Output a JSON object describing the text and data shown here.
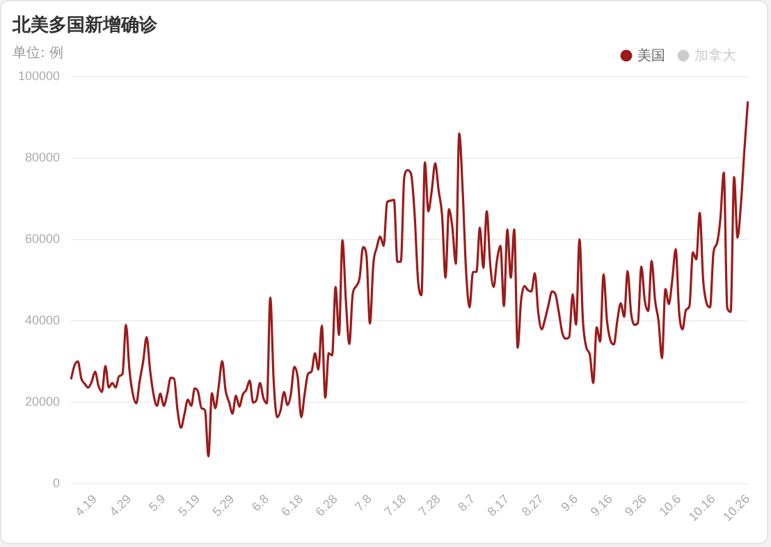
{
  "chart_data": {
    "type": "line",
    "title": "北美多国新增确诊",
    "subtitle": "单位: 例",
    "categories": [
      null,
      null,
      null,
      null,
      null,
      null,
      null,
      "4.19",
      null,
      null,
      null,
      null,
      null,
      null,
      null,
      null,
      null,
      "4.29",
      null,
      null,
      null,
      null,
      null,
      null,
      null,
      null,
      null,
      "5.9",
      null,
      null,
      null,
      null,
      null,
      null,
      null,
      null,
      null,
      "5.19",
      null,
      null,
      null,
      null,
      null,
      null,
      null,
      null,
      null,
      "5.29",
      null,
      null,
      null,
      null,
      null,
      null,
      null,
      null,
      null,
      "6.8",
      null,
      null,
      null,
      null,
      null,
      null,
      null,
      null,
      null,
      "6.18",
      null,
      null,
      null,
      null,
      null,
      null,
      null,
      null,
      null,
      "6.28",
      null,
      null,
      null,
      null,
      null,
      null,
      null,
      null,
      null,
      "7.8",
      null,
      null,
      null,
      null,
      null,
      null,
      null,
      null,
      null,
      "7.18",
      null,
      null,
      null,
      null,
      null,
      null,
      null,
      null,
      null,
      "7.28",
      null,
      null,
      null,
      null,
      null,
      null,
      null,
      null,
      null,
      "8.7",
      null,
      null,
      null,
      null,
      null,
      null,
      null,
      null,
      null,
      "8.17",
      null,
      null,
      null,
      null,
      null,
      null,
      null,
      null,
      null,
      "8.27",
      null,
      null,
      null,
      null,
      null,
      null,
      null,
      null,
      null,
      "9.6",
      null,
      null,
      null,
      null,
      null,
      null,
      null,
      null,
      null,
      "9.16",
      null,
      null,
      null,
      null,
      null,
      null,
      null,
      null,
      null,
      "9.26",
      null,
      null,
      null,
      null,
      null,
      null,
      null,
      null,
      null,
      "10.6",
      null,
      null,
      null,
      null,
      null,
      null,
      null,
      null,
      null,
      "10.16",
      null,
      null,
      null,
      null,
      null,
      null,
      null,
      null,
      null,
      "10.26"
    ],
    "series": [
      {
        "name": "美国",
        "color": "#9b1b1b",
        "values": [
          25600,
          29000,
          30000,
          25800,
          24500,
          23600,
          25000,
          27500,
          24000,
          22500,
          28900,
          23600,
          24700,
          23600,
          26400,
          27000,
          39000,
          28000,
          22000,
          19700,
          25300,
          30000,
          36000,
          28000,
          22000,
          19100,
          22100,
          19100,
          22000,
          26000,
          25800,
          18000,
          13700,
          17000,
          20600,
          19100,
          23400,
          22500,
          18500,
          18000,
          6700,
          22200,
          18500,
          24000,
          30100,
          22800,
          20000,
          17200,
          21600,
          18900,
          21900,
          23000,
          25300,
          19900,
          20600,
          24700,
          21000,
          19700,
          45700,
          25000,
          16300,
          18000,
          22500,
          19300,
          22000,
          28700,
          26000,
          16300,
          22000,
          27000,
          27500,
          32000,
          28000,
          38800,
          21100,
          32000,
          31500,
          48300,
          36500,
          59800,
          45000,
          34300,
          46600,
          48500,
          50600,
          58100,
          56000,
          39300,
          54000,
          58000,
          60700,
          58400,
          69100,
          69500,
          69700,
          54500,
          54500,
          75300,
          77000,
          76000,
          66300,
          50000,
          46300,
          78900,
          66900,
          72000,
          78700,
          72000,
          66000,
          50600,
          67400,
          62900,
          54000,
          86000,
          71900,
          52000,
          43300,
          52000,
          52000,
          62900,
          53000,
          66900,
          54000,
          48300,
          55000,
          58400,
          43600,
          62400,
          50600,
          62400,
          33400,
          45000,
          48500,
          47500,
          47200,
          51700,
          42000,
          37900,
          40500,
          44000,
          47200,
          46500,
          42000,
          37000,
          35600,
          36000,
          46500,
          39000,
          60000,
          40000,
          33400,
          31700,
          24700,
          38400,
          34900,
          51400,
          40000,
          35200,
          34200,
          40000,
          44300,
          41000,
          52200,
          42000,
          39000,
          39500,
          53300,
          45000,
          42400,
          54700,
          45000,
          40000,
          30800,
          47800,
          44100,
          50000,
          57600,
          42000,
          37900,
          42700,
          43600,
          56800,
          55100,
          66500,
          50000,
          44300,
          43300,
          56800,
          59000,
          65000,
          76400,
          43200,
          42200,
          75300,
          60400,
          68800,
          82000,
          93900
        ]
      },
      {
        "name": "加拿大",
        "color": "#cccccc",
        "values": [
          null,
          null,
          null,
          null,
          null,
          null,
          null,
          null,
          null,
          null,
          null,
          null,
          null,
          null,
          null,
          null,
          null,
          null,
          null,
          null,
          null,
          null,
          null,
          null,
          null,
          null,
          null,
          null,
          null,
          null,
          null,
          null,
          null,
          null,
          null,
          null,
          null,
          null,
          null,
          null,
          null,
          null,
          null,
          null,
          null,
          null,
          null,
          null,
          null,
          null,
          null,
          null,
          null,
          null,
          null,
          null,
          null,
          null,
          null,
          null,
          null,
          null,
          null,
          null,
          null,
          null,
          null,
          null,
          null,
          null,
          null,
          null,
          null,
          null,
          null,
          null,
          null,
          null,
          null,
          null,
          null,
          null,
          null,
          null,
          null,
          null,
          null,
          null,
          null,
          null,
          null,
          null,
          null,
          null,
          null,
          null,
          null,
          null,
          null,
          null,
          null,
          null,
          null,
          null,
          null,
          null,
          null,
          null,
          null,
          null,
          null,
          null,
          null,
          null,
          null,
          null,
          null,
          null,
          null,
          null,
          null,
          null,
          null,
          null,
          null,
          null,
          null,
          null,
          null,
          null,
          null,
          null,
          null,
          null,
          null,
          null,
          null,
          null,
          null,
          null,
          null,
          null,
          null,
          null,
          null,
          null,
          null,
          null,
          null,
          null,
          null,
          null,
          null,
          null,
          null,
          null,
          null,
          null,
          null,
          null,
          null,
          null,
          null,
          null,
          null,
          null,
          null,
          null,
          null,
          null,
          null,
          null,
          null,
          null,
          null,
          null,
          null,
          null,
          null,
          null,
          null,
          null,
          null,
          null,
          null,
          null,
          null,
          null,
          null,
          null,
          null,
          null,
          null,
          null,
          null,
          null,
          null,
          null
        ]
      }
    ],
    "ylim": [
      0,
      100000
    ],
    "yticks": [
      0,
      20000,
      40000,
      60000,
      80000,
      100000
    ],
    "grid": "y",
    "legend": "top right",
    "marker": "none"
  }
}
